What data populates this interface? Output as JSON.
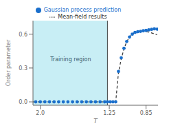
{
  "chart_data": {
    "type": "scatter",
    "xlabel": "T",
    "ylabel": "Order parameter",
    "xlim": [
      2.08,
      0.72
    ],
    "ylim": [
      -0.03,
      0.72
    ],
    "xticks": [
      {
        "value": 2.0,
        "label": "2.0"
      },
      1.25,
      0.85
    ],
    "yticks": [
      {
        "value": 0.0,
        "label": "0.0"
      },
      0.3,
      0.6
    ],
    "legend": "top",
    "spans": [
      {
        "x0": 1.27,
        "x1": 2.08,
        "color": "#c8eef5"
      }
    ],
    "vlines": [
      {
        "x": 1.27,
        "color": "#444444"
      }
    ],
    "annotations": [
      {
        "text": "Training region",
        "x": 1.67,
        "y": 0.38,
        "color": "#3a6070"
      }
    ],
    "series": [
      {
        "name": "Gaussian process prediction",
        "type": "scatter",
        "marker": "circle",
        "color": "#1a6fcc",
        "x": [
          2.05,
          2.0,
          1.95,
          1.9,
          1.85,
          1.8,
          1.75,
          1.7,
          1.65,
          1.6,
          1.55,
          1.5,
          1.45,
          1.4,
          1.35,
          1.3,
          1.27,
          1.24,
          1.21,
          1.18,
          1.15,
          1.12,
          1.09,
          1.06,
          1.03,
          1.0,
          0.97,
          0.94,
          0.91,
          0.88,
          0.85,
          0.82,
          0.79,
          0.76,
          0.73
        ],
        "values": [
          0.0,
          0.0,
          0.0,
          0.0,
          0.0,
          0.0,
          0.0,
          0.0,
          0.0,
          0.0,
          0.0,
          0.0,
          0.0,
          0.0,
          0.0,
          0.0,
          0.0,
          0.0,
          0.0,
          0.0,
          0.27,
          0.39,
          0.475,
          0.535,
          0.575,
          0.6,
          0.615,
          0.622,
          0.625,
          0.63,
          0.633,
          0.638,
          0.643,
          0.647,
          0.645
        ]
      },
      {
        "name": "Mean-field results",
        "type": "line",
        "line_style": "dashed",
        "color": "#333333",
        "x": [
          2.08,
          2.0,
          1.9,
          1.8,
          1.7,
          1.6,
          1.5,
          1.4,
          1.35,
          1.3,
          1.27,
          1.24,
          1.21,
          1.18,
          1.15,
          1.12,
          1.09,
          1.06,
          1.03,
          1.0,
          0.97,
          0.94,
          0.91,
          0.88,
          0.85,
          0.82,
          0.79,
          0.76,
          0.73
        ],
        "values": [
          0.0,
          0.0,
          0.0,
          0.0,
          0.0,
          0.0,
          0.0,
          0.0,
          0.0,
          0.0,
          0.0,
          0.0,
          0.0,
          0.0,
          0.26,
          0.38,
          0.47,
          0.535,
          0.575,
          0.6,
          0.615,
          0.62,
          0.625,
          0.627,
          0.624,
          0.618,
          0.611,
          0.603,
          0.595
        ]
      }
    ]
  }
}
